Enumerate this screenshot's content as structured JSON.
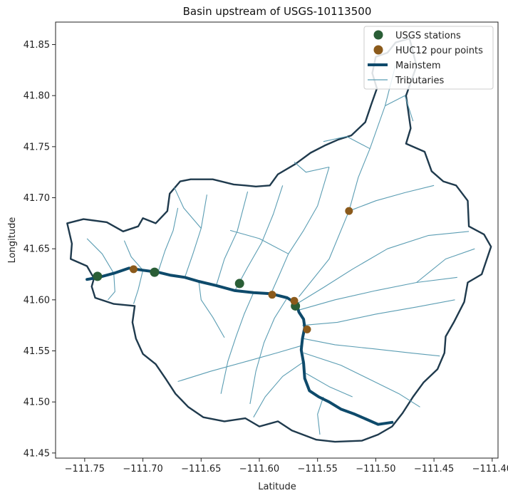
{
  "chart_data": {
    "type": "map",
    "title": "Basin upstream of USGS-10113500",
    "xlabel": "Latitude",
    "ylabel": "Longitude",
    "xlim": [
      -111.775,
      -111.395
    ],
    "ylim": [
      41.445,
      41.872
    ],
    "x_ticks": [
      -111.75,
      -111.7,
      -111.65,
      -111.6,
      -111.55,
      -111.5,
      -111.45,
      -111.4
    ],
    "x_tick_labels": [
      "−111.75",
      "−111.70",
      "−111.65",
      "−111.60",
      "−111.55",
      "−111.50",
      "−111.45",
      "−111.40"
    ],
    "y_ticks": [
      41.45,
      41.5,
      41.55,
      41.6,
      41.65,
      41.7,
      41.75,
      41.8,
      41.85
    ],
    "y_tick_labels": [
      "41.45",
      "41.50",
      "41.55",
      "41.60",
      "41.65",
      "41.70",
      "41.75",
      "41.80",
      "41.85"
    ],
    "grid": false,
    "legend_position": "top-right",
    "legend": [
      {
        "label": "USGS stations",
        "kind": "marker",
        "color": "#2a5e36"
      },
      {
        "label": "HUC12 pour points",
        "kind": "marker",
        "color": "#8b5a1b"
      },
      {
        "label": "Mainstem",
        "kind": "thick-line",
        "color": "#0e4a6b"
      },
      {
        "label": "Tributaries",
        "kind": "thin-line",
        "color": "#5b9db3"
      }
    ],
    "colors": {
      "basin_outline": "#1f3a4d",
      "mainstem": "#0e4a6b",
      "tributaries": "#5b9db3",
      "usgs_station": "#2a5e36",
      "pour_point": "#8b5a1b"
    },
    "usgs_stations": [
      [
        -111.739,
        41.623
      ],
      [
        -111.69,
        41.627
      ],
      [
        -111.617,
        41.616
      ],
      [
        -111.569,
        41.594
      ]
    ],
    "huc12_pour_points": [
      [
        -111.708,
        41.63
      ],
      [
        -111.589,
        41.605
      ],
      [
        -111.57,
        41.599
      ],
      [
        -111.559,
        41.571
      ],
      [
        -111.523,
        41.687
      ]
    ],
    "basin_boundary": [
      [
        -111.742,
        41.621
      ],
      [
        -111.748,
        41.633
      ],
      [
        -111.762,
        41.64
      ],
      [
        -111.761,
        41.655
      ],
      [
        -111.765,
        41.675
      ],
      [
        -111.751,
        41.679
      ],
      [
        -111.731,
        41.676
      ],
      [
        -111.717,
        41.667
      ],
      [
        -111.704,
        41.672
      ],
      [
        -111.7,
        41.68
      ],
      [
        -111.689,
        41.675
      ],
      [
        -111.679,
        41.687
      ],
      [
        -111.677,
        41.704
      ],
      [
        -111.668,
        41.716
      ],
      [
        -111.659,
        41.718
      ],
      [
        -111.64,
        41.718
      ],
      [
        -111.622,
        41.713
      ],
      [
        -111.612,
        41.712
      ],
      [
        -111.603,
        41.711
      ],
      [
        -111.591,
        41.712
      ],
      [
        -111.584,
        41.723
      ],
      [
        -111.569,
        41.733
      ],
      [
        -111.556,
        41.744
      ],
      [
        -111.544,
        41.751
      ],
      [
        -111.532,
        41.757
      ],
      [
        -111.521,
        41.761
      ],
      [
        -111.509,
        41.774
      ],
      [
        -111.504,
        41.791
      ],
      [
        -111.499,
        41.807
      ],
      [
        -111.503,
        41.822
      ],
      [
        -111.5,
        41.838
      ],
      [
        -111.49,
        41.842
      ],
      [
        -111.483,
        41.852
      ],
      [
        -111.471,
        41.856
      ],
      [
        -111.465,
        41.829
      ],
      [
        -111.474,
        41.8
      ],
      [
        -111.47,
        41.768
      ],
      [
        -111.474,
        41.753
      ],
      [
        -111.458,
        41.745
      ],
      [
        -111.452,
        41.726
      ],
      [
        -111.442,
        41.716
      ],
      [
        -111.431,
        41.712
      ],
      [
        -111.421,
        41.697
      ],
      [
        -111.42,
        41.672
      ],
      [
        -111.407,
        41.664
      ],
      [
        -111.401,
        41.652
      ],
      [
        -111.409,
        41.625
      ],
      [
        -111.421,
        41.617
      ],
      [
        -111.424,
        41.598
      ],
      [
        -111.433,
        41.578
      ],
      [
        -111.44,
        41.564
      ],
      [
        -111.441,
        41.548
      ],
      [
        -111.447,
        41.532
      ],
      [
        -111.459,
        41.519
      ],
      [
        -111.468,
        41.505
      ],
      [
        -111.477,
        41.489
      ],
      [
        -111.486,
        41.476
      ],
      [
        -111.498,
        41.468
      ],
      [
        -111.512,
        41.462
      ],
      [
        -111.535,
        41.461
      ],
      [
        -111.551,
        41.463
      ],
      [
        -111.572,
        41.472
      ],
      [
        -111.584,
        41.481
      ],
      [
        -111.6,
        41.476
      ],
      [
        -111.612,
        41.484
      ],
      [
        -111.63,
        41.481
      ],
      [
        -111.648,
        41.485
      ],
      [
        -111.661,
        41.495
      ],
      [
        -111.672,
        41.508
      ],
      [
        -111.68,
        41.522
      ],
      [
        -111.689,
        41.537
      ],
      [
        -111.7,
        41.547
      ],
      [
        -111.706,
        41.562
      ],
      [
        -111.709,
        41.578
      ],
      [
        -111.707,
        41.594
      ],
      [
        -111.725,
        41.596
      ],
      [
        -111.741,
        41.602
      ],
      [
        -111.744,
        41.613
      ],
      [
        -111.742,
        41.621
      ]
    ],
    "mainstem": [
      [
        -111.748,
        41.62
      ],
      [
        -111.738,
        41.622
      ],
      [
        -111.725,
        41.626
      ],
      [
        -111.712,
        41.631
      ],
      [
        -111.7,
        41.629
      ],
      [
        -111.687,
        41.627
      ],
      [
        -111.676,
        41.624
      ],
      [
        -111.664,
        41.622
      ],
      [
        -111.652,
        41.618
      ],
      [
        -111.637,
        41.614
      ],
      [
        -111.621,
        41.609
      ],
      [
        -111.605,
        41.607
      ],
      [
        -111.59,
        41.606
      ],
      [
        -111.576,
        41.602
      ],
      [
        -111.568,
        41.596
      ],
      [
        -111.566,
        41.588
      ],
      [
        -111.562,
        41.581
      ],
      [
        -111.561,
        41.573
      ],
      [
        -111.563,
        41.562
      ],
      [
        -111.564,
        41.551
      ],
      [
        -111.562,
        41.538
      ],
      [
        -111.561,
        41.523
      ],
      [
        -111.557,
        41.511
      ],
      [
        -111.549,
        41.505
      ],
      [
        -111.54,
        41.5
      ],
      [
        -111.53,
        41.493
      ],
      [
        -111.518,
        41.488
      ],
      [
        -111.508,
        41.483
      ],
      [
        -111.498,
        41.478
      ],
      [
        -111.486,
        41.48
      ]
    ],
    "tributaries": [
      [
        [
          -111.7,
          41.629
        ],
        [
          -111.704,
          41.61
        ],
        [
          -111.708,
          41.596
        ]
      ],
      [
        [
          -111.7,
          41.629
        ],
        [
          -111.71,
          41.642
        ],
        [
          -111.716,
          41.658
        ]
      ],
      [
        [
          -111.687,
          41.627
        ],
        [
          -111.681,
          41.648
        ],
        [
          -111.674,
          41.668
        ],
        [
          -111.67,
          41.69
        ]
      ],
      [
        [
          -111.664,
          41.622
        ],
        [
          -111.657,
          41.645
        ],
        [
          -111.65,
          41.67
        ],
        [
          -111.645,
          41.703
        ]
      ],
      [
        [
          -111.652,
          41.618
        ],
        [
          -111.65,
          41.6
        ],
        [
          -111.64,
          41.583
        ],
        [
          -111.63,
          41.563
        ]
      ],
      [
        [
          -111.637,
          41.614
        ],
        [
          -111.63,
          41.64
        ],
        [
          -111.619,
          41.667
        ],
        [
          -111.61,
          41.706
        ]
      ],
      [
        [
          -111.621,
          41.609
        ],
        [
          -111.61,
          41.632
        ],
        [
          -111.598,
          41.656
        ],
        [
          -111.588,
          41.684
        ],
        [
          -111.58,
          41.712
        ]
      ],
      [
        [
          -111.605,
          41.607
        ],
        [
          -111.613,
          41.586
        ],
        [
          -111.62,
          41.564
        ],
        [
          -111.627,
          41.54
        ],
        [
          -111.633,
          41.508
        ]
      ],
      [
        [
          -111.59,
          41.606
        ],
        [
          -111.583,
          41.624
        ],
        [
          -111.575,
          41.645
        ],
        [
          -111.562,
          41.668
        ],
        [
          -111.55,
          41.692
        ],
        [
          -111.54,
          41.73
        ]
      ],
      [
        [
          -111.576,
          41.602
        ],
        [
          -111.587,
          41.582
        ],
        [
          -111.596,
          41.558
        ],
        [
          -111.603,
          41.53
        ],
        [
          -111.608,
          41.498
        ]
      ],
      [
        [
          -111.568,
          41.596
        ],
        [
          -111.545,
          41.612
        ],
        [
          -111.52,
          41.63
        ],
        [
          -111.49,
          41.65
        ],
        [
          -111.455,
          41.663
        ],
        [
          -111.42,
          41.667
        ]
      ],
      [
        [
          -111.566,
          41.603
        ],
        [
          -111.54,
          41.64
        ],
        [
          -111.523,
          41.687
        ],
        [
          -111.515,
          41.72
        ],
        [
          -111.505,
          41.748
        ],
        [
          -111.492,
          41.79
        ],
        [
          -111.483,
          41.83
        ]
      ],
      [
        [
          -111.523,
          41.687
        ],
        [
          -111.5,
          41.697
        ],
        [
          -111.475,
          41.705
        ],
        [
          -111.45,
          41.712
        ]
      ],
      [
        [
          -111.566,
          41.59
        ],
        [
          -111.535,
          41.6
        ],
        [
          -111.5,
          41.609
        ],
        [
          -111.465,
          41.617
        ],
        [
          -111.43,
          41.622
        ]
      ],
      [
        [
          -111.563,
          41.575
        ],
        [
          -111.533,
          41.578
        ],
        [
          -111.5,
          41.586
        ],
        [
          -111.465,
          41.593
        ],
        [
          -111.432,
          41.6
        ]
      ],
      [
        [
          -111.562,
          41.562
        ],
        [
          -111.535,
          41.556
        ],
        [
          -111.502,
          41.552
        ],
        [
          -111.47,
          41.548
        ],
        [
          -111.445,
          41.545
        ]
      ],
      [
        [
          -111.562,
          41.548
        ],
        [
          -111.53,
          41.536
        ],
        [
          -111.505,
          41.522
        ],
        [
          -111.48,
          41.508
        ],
        [
          -111.462,
          41.495
        ]
      ],
      [
        [
          -111.56,
          41.528
        ],
        [
          -111.54,
          41.515
        ],
        [
          -111.52,
          41.505
        ]
      ],
      [
        [
          -111.561,
          41.54
        ],
        [
          -111.58,
          41.525
        ],
        [
          -111.595,
          41.505
        ],
        [
          -111.605,
          41.485
        ]
      ],
      [
        [
          -111.564,
          41.555
        ],
        [
          -111.585,
          41.548
        ],
        [
          -111.61,
          41.54
        ],
        [
          -111.642,
          41.53
        ],
        [
          -111.67,
          41.52
        ]
      ],
      [
        [
          -111.545,
          41.505
        ],
        [
          -111.55,
          41.488
        ],
        [
          -111.548,
          41.468
        ]
      ],
      [
        [
          -111.505,
          41.748
        ],
        [
          -111.525,
          41.76
        ],
        [
          -111.545,
          41.755
        ]
      ],
      [
        [
          -111.492,
          41.79
        ],
        [
          -111.475,
          41.8
        ],
        [
          -111.468,
          41.775
        ]
      ],
      [
        [
          -111.54,
          41.73
        ],
        [
          -111.56,
          41.725
        ],
        [
          -111.57,
          41.735
        ]
      ],
      [
        [
          -111.575,
          41.645
        ],
        [
          -111.6,
          41.66
        ],
        [
          -111.625,
          41.668
        ]
      ],
      [
        [
          -111.725,
          41.626
        ],
        [
          -111.735,
          41.645
        ],
        [
          -111.748,
          41.66
        ]
      ],
      [
        [
          -111.725,
          41.626
        ],
        [
          -111.724,
          41.608
        ],
        [
          -111.73,
          41.6
        ]
      ],
      [
        [
          -111.65,
          41.67
        ],
        [
          -111.665,
          41.69
        ],
        [
          -111.673,
          41.71
        ]
      ],
      [
        [
          -111.465,
          41.617
        ],
        [
          -111.44,
          41.64
        ],
        [
          -111.415,
          41.65
        ]
      ]
    ]
  }
}
